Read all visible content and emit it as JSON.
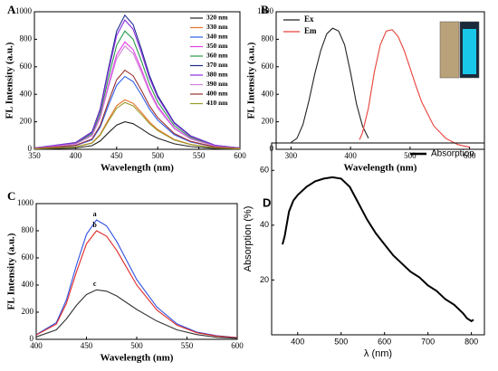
{
  "chart_data": [
    {
      "type": "line",
      "panel_label": "A",
      "xlabel": "Wavelength (nm)",
      "ylabel": "FL Intensity (a.u.)",
      "font": "serif",
      "xlim": [
        350,
        600
      ],
      "ylim": [
        0,
        1000
      ],
      "xticks": [
        350,
        400,
        450,
        500,
        550,
        600
      ],
      "yticks": [
        0,
        200,
        400,
        600,
        800,
        1000
      ],
      "legend": "upper right",
      "series": [
        {
          "name": "320 nm",
          "color": "#222222",
          "x": [
            350,
            375,
            400,
            420,
            430,
            440,
            450,
            460,
            470,
            480,
            490,
            500,
            520,
            540,
            570,
            600
          ],
          "values": [
            2,
            6,
            10,
            26,
            60,
            120,
            176,
            200,
            186,
            150,
            110,
            80,
            40,
            20,
            6,
            2
          ]
        },
        {
          "name": "330 nm",
          "color": "#e8732a",
          "x": [
            350,
            375,
            400,
            420,
            430,
            440,
            450,
            460,
            470,
            480,
            490,
            500,
            520,
            540,
            570,
            600
          ],
          "values": [
            4,
            11,
            18,
            47,
            108,
            216,
            317,
            360,
            335,
            270,
            198,
            144,
            72,
            36,
            11,
            4
          ]
        },
        {
          "name": "340 nm",
          "color": "#2f5ee8",
          "x": [
            350,
            375,
            400,
            420,
            430,
            440,
            450,
            460,
            470,
            480,
            490,
            500,
            520,
            540,
            570,
            600
          ],
          "values": [
            5,
            16,
            27,
            69,
            159,
            318,
            466,
            530,
            493,
            398,
            292,
            212,
            106,
            53,
            16,
            5
          ]
        },
        {
          "name": "350 nm",
          "color": "#e23be8",
          "x": [
            350,
            375,
            400,
            420,
            430,
            440,
            450,
            460,
            470,
            480,
            490,
            500,
            520,
            540,
            570,
            600
          ],
          "values": [
            8,
            23,
            39,
            101,
            234,
            468,
            686,
            780,
            725,
            585,
            429,
            312,
            156,
            78,
            23,
            8
          ]
        },
        {
          "name": "360 nm",
          "color": "#2a9a4a",
          "x": [
            350,
            375,
            400,
            420,
            430,
            440,
            450,
            460,
            470,
            480,
            490,
            500,
            520,
            540,
            570,
            600
          ],
          "values": [
            9,
            26,
            43,
            112,
            258,
            516,
            757,
            860,
            800,
            645,
            473,
            344,
            172,
            86,
            26,
            9
          ]
        },
        {
          "name": "370 nm",
          "color": "#1c2a8a",
          "x": [
            350,
            375,
            400,
            420,
            430,
            440,
            450,
            460,
            470,
            480,
            490,
            500,
            520,
            540,
            570,
            600
          ],
          "values": [
            10,
            29,
            49,
            127,
            293,
            585,
            858,
            975,
            907,
            731,
            536,
            390,
            195,
            98,
            29,
            10
          ]
        },
        {
          "name": "380 nm",
          "color": "#8a2be2",
          "x": [
            350,
            375,
            400,
            420,
            430,
            440,
            450,
            460,
            470,
            480,
            490,
            500,
            520,
            540,
            570,
            600
          ],
          "values": [
            9,
            28,
            47,
            122,
            282,
            564,
            827,
            940,
            874,
            705,
            517,
            376,
            188,
            94,
            28,
            9
          ]
        },
        {
          "name": "390 nm",
          "color": "#d080d8",
          "x": [
            350,
            375,
            400,
            420,
            430,
            440,
            450,
            460,
            470,
            480,
            490,
            500,
            520,
            540,
            570,
            600
          ],
          "values": [
            8,
            23,
            38,
            98,
            225,
            450,
            660,
            750,
            698,
            563,
            413,
            300,
            150,
            75,
            23,
            8
          ]
        },
        {
          "name": "400 nm",
          "color": "#9a3030",
          "x": [
            350,
            375,
            400,
            420,
            430,
            440,
            450,
            460,
            470,
            480,
            490,
            500,
            520,
            540,
            570,
            600
          ],
          "values": [
            6,
            17,
            29,
            75,
            173,
            345,
            506,
            575,
            535,
            431,
            316,
            230,
            115,
            58,
            17,
            6
          ]
        },
        {
          "name": "410 nm",
          "color": "#9a9a2a",
          "x": [
            350,
            375,
            400,
            420,
            430,
            440,
            450,
            460,
            470,
            480,
            490,
            500,
            520,
            540,
            570,
            600
          ],
          "values": [
            3,
            10,
            17,
            44,
            102,
            204,
            299,
            340,
            316,
            255,
            187,
            136,
            68,
            34,
            10,
            3
          ]
        }
      ]
    },
    {
      "type": "line",
      "panel_label": "B",
      "xlabel": "Wavelength (nm)",
      "ylabel": "FL Intensity (a.u.)",
      "font": "serif",
      "xlim": [
        275,
        625
      ],
      "ylim": [
        0,
        1000
      ],
      "xticks": [
        300,
        400,
        500,
        600
      ],
      "yticks": [
        0,
        200,
        400,
        600,
        800,
        1000
      ],
      "legend": "upper left",
      "series": [
        {
          "name": "Ex",
          "color": "#222222",
          "x": [
            300,
            310,
            320,
            330,
            340,
            350,
            360,
            370,
            380,
            390,
            400,
            410,
            420,
            430
          ],
          "values": [
            50,
            80,
            180,
            350,
            550,
            720,
            840,
            880,
            860,
            760,
            560,
            330,
            170,
            80
          ]
        },
        {
          "name": "Em",
          "color": "#e8413a",
          "x": [
            415,
            420,
            430,
            440,
            450,
            460,
            470,
            480,
            490,
            500,
            510,
            520,
            540,
            560,
            580,
            600
          ],
          "values": [
            70,
            120,
            300,
            560,
            760,
            860,
            870,
            820,
            720,
            590,
            460,
            340,
            170,
            80,
            35,
            15
          ]
        }
      ]
    },
    {
      "type": "line",
      "panel_label": "C",
      "xlabel": "Wavelength (nm)",
      "ylabel": "FL Intensity (a.u.)",
      "font": "serif",
      "xlim": [
        400,
        600
      ],
      "ylim": [
        0,
        1000
      ],
      "xticks": [
        400,
        450,
        500,
        550,
        600
      ],
      "yticks": [
        0,
        200,
        400,
        600,
        800,
        1000
      ],
      "legend": "peak",
      "series": [
        {
          "name": "a",
          "color": "#2f4fe0",
          "x": [
            400,
            420,
            430,
            440,
            450,
            460,
            470,
            480,
            490,
            500,
            520,
            540,
            560,
            580,
            600
          ],
          "values": [
            35,
            123,
            290,
            546,
            774,
            880,
            836,
            722,
            581,
            440,
            238,
            114,
            53,
            26,
            13
          ]
        },
        {
          "name": "b",
          "color": "#e02a2a",
          "x": [
            400,
            420,
            430,
            440,
            450,
            460,
            470,
            480,
            490,
            500,
            520,
            540,
            560,
            580,
            600
          ],
          "values": [
            32,
            112,
            264,
            496,
            704,
            800,
            760,
            656,
            528,
            400,
            216,
            104,
            48,
            24,
            12
          ]
        },
        {
          "name": "c",
          "color": "#333333",
          "x": [
            400,
            420,
            430,
            440,
            450,
            460,
            470,
            480,
            490,
            500,
            520,
            540,
            560,
            580,
            600
          ],
          "values": [
            18,
            70,
            150,
            250,
            330,
            365,
            355,
            320,
            270,
            220,
            135,
            70,
            35,
            15,
            8
          ]
        }
      ]
    },
    {
      "type": "line",
      "panel_label": "D",
      "xlabel": "λ (nm)",
      "ylabel": "Absorption (%)",
      "font": "sans",
      "xlim": [
        340,
        830
      ],
      "ylim": [
        0,
        70
      ],
      "xticks": [
        400,
        500,
        600,
        700,
        800
      ],
      "yticks": [
        20,
        40,
        60
      ],
      "legend": "upper right",
      "series": [
        {
          "name": "Absorption",
          "color": "#000000",
          "x": [
            365,
            370,
            380,
            390,
            400,
            420,
            440,
            460,
            480,
            500,
            520,
            540,
            560,
            580,
            600,
            620,
            640,
            660,
            680,
            700,
            720,
            740,
            760,
            780,
            790,
            800,
            805
          ],
          "values": [
            33,
            36,
            45,
            49,
            51,
            54,
            56,
            57,
            57.5,
            57,
            54,
            48,
            42,
            37,
            33,
            29,
            26,
            23,
            21,
            18,
            16,
            13,
            11,
            8,
            6,
            5,
            5.5
          ]
        }
      ]
    }
  ]
}
